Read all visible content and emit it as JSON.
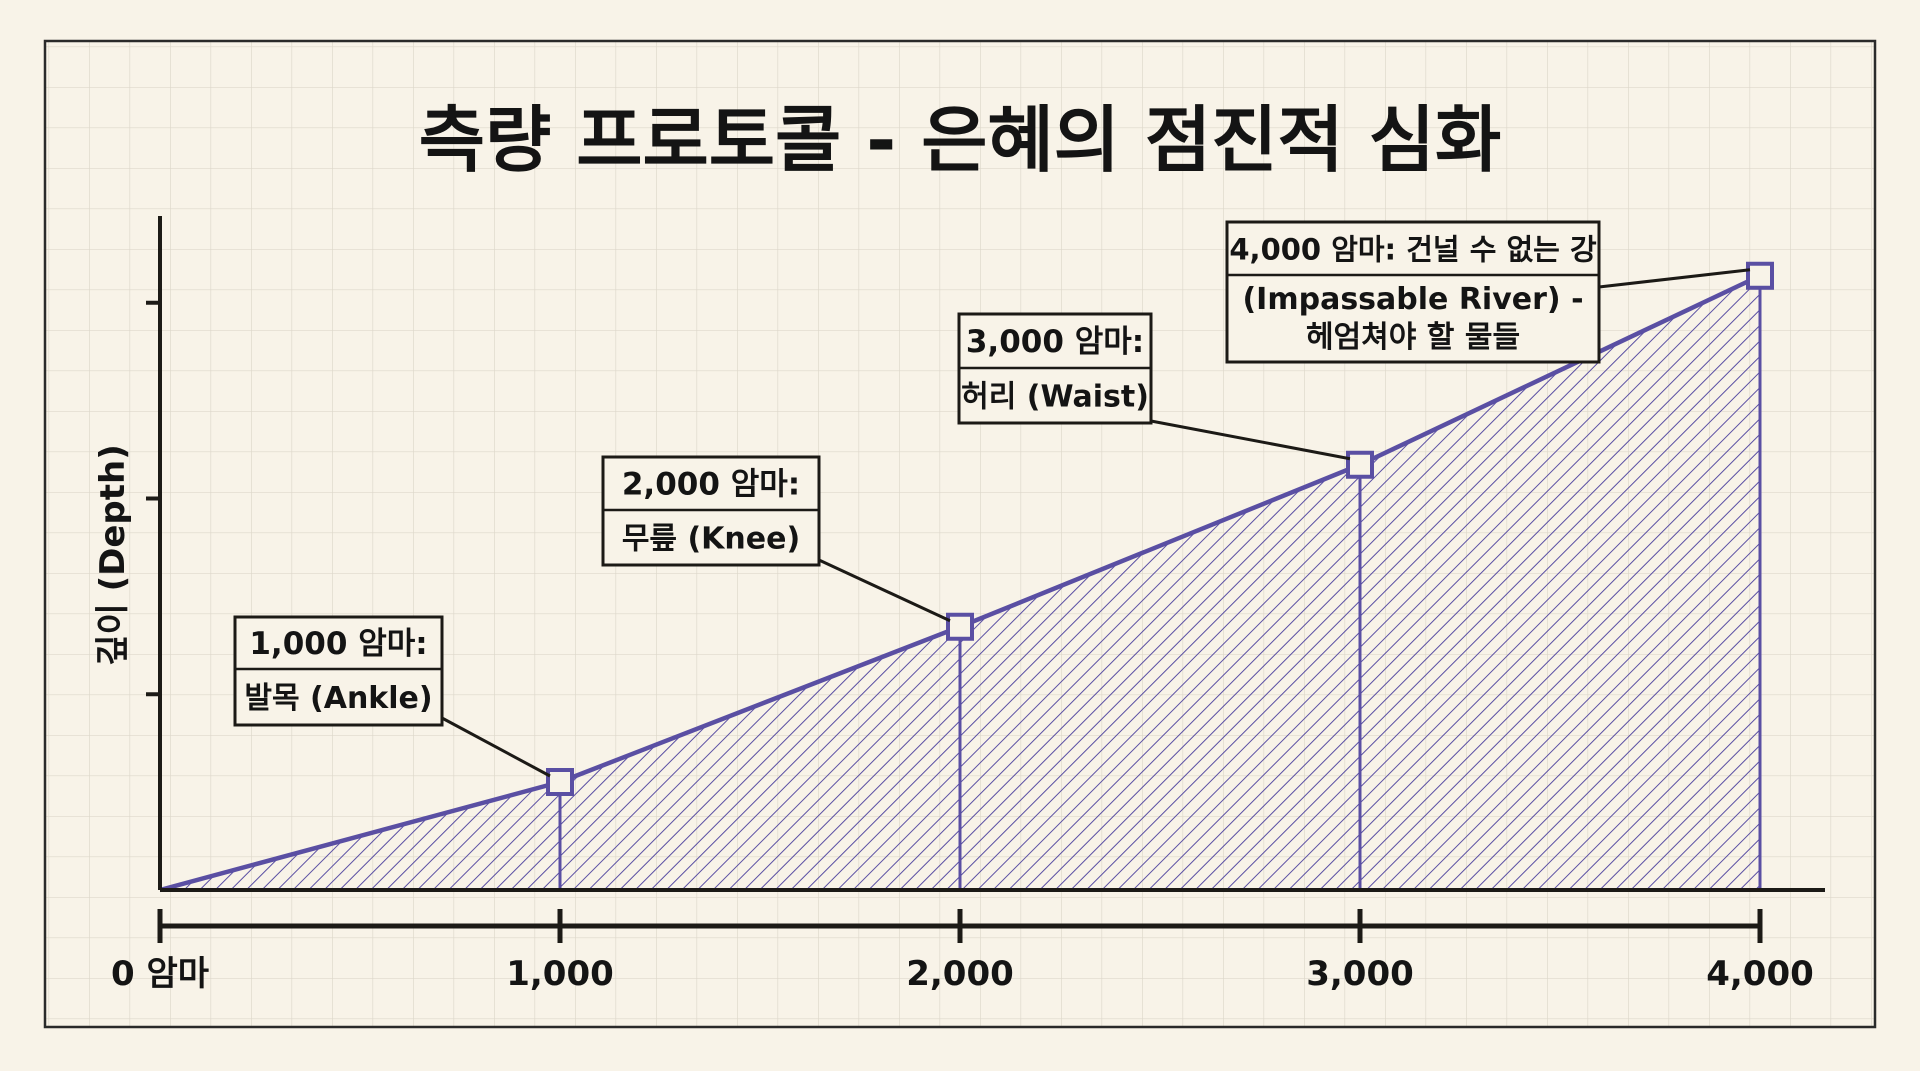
{
  "chart_data": {
    "type": "area",
    "title": "측량 프로토콜 - 은혜의 점진적 심화",
    "ylabel": "깊이 (Depth)",
    "x": [
      0,
      1000,
      2000,
      3000,
      4000
    ],
    "values": [
      0,
      0.16,
      0.39,
      0.63,
      0.91
    ],
    "xlim": [
      0,
      4000
    ],
    "ylim": [
      0,
      1
    ],
    "x_tick_labels": [
      "0 암마",
      "1,000",
      "2,000",
      "3,000",
      "4,000"
    ],
    "grid": true,
    "fill": "hatched",
    "annotations": [
      {
        "x": 1000,
        "head": "1,000 암마:",
        "body": [
          "발목 (Ankle)"
        ]
      },
      {
        "x": 2000,
        "head": "2,000 암마:",
        "body": [
          "무릎 (Knee)"
        ]
      },
      {
        "x": 3000,
        "head": "3,000 암마:",
        "body": [
          "허리 (Waist)"
        ]
      },
      {
        "x": 4000,
        "head": "4,000 암마: 건널 수 없는 강",
        "body": [
          "(Impassable River) -",
          "헤엄쳐야 할 물들"
        ]
      }
    ],
    "colors": {
      "series": "#5a4fa3",
      "axis": "#1c1a16",
      "grid": "#dcd6c9",
      "background": "#f8f3e8"
    }
  }
}
